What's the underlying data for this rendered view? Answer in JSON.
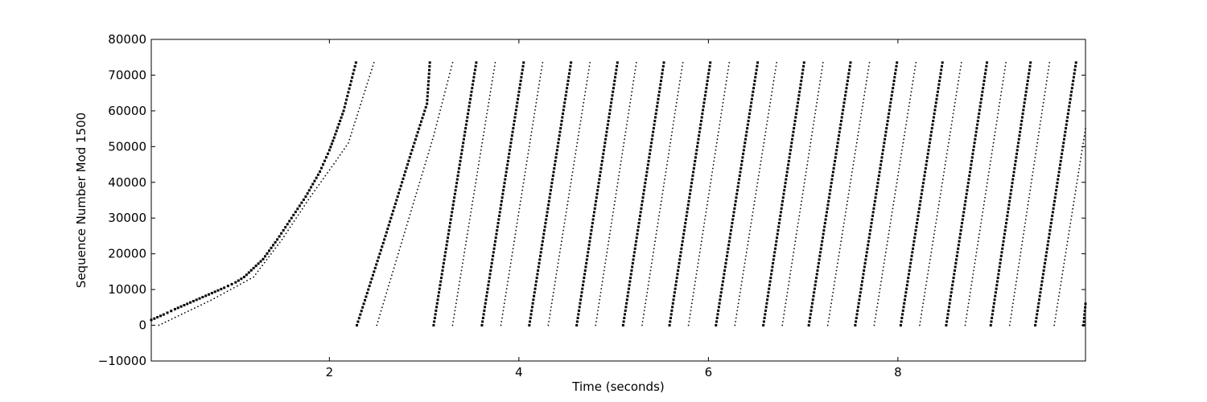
{
  "chart_data": {
    "type": "scatter",
    "title": "",
    "xlabel": "Time (seconds)",
    "ylabel": "Sequence Number Mod 1500",
    "xlim": [
      0.12,
      9.98
    ],
    "ylim": [
      -10000,
      80000
    ],
    "xticks": [
      2,
      4,
      6,
      8
    ],
    "xtick_labels": [
      "2",
      "4",
      "6",
      "8"
    ],
    "yticks": [
      -10000,
      0,
      10000,
      20000,
      30000,
      40000,
      50000,
      60000,
      70000,
      80000
    ],
    "ytick_labels": [
      "−10000",
      "0",
      "10000",
      "20000",
      "30000",
      "40000",
      "50000",
      "60000",
      "70000",
      "80000"
    ],
    "grid": false,
    "legend": "none",
    "marker_color": "#000000",
    "series": [
      {
        "marker": "square",
        "segments": [
          [
            [
              0.12,
              1500
            ],
            [
              0.25,
              3000
            ],
            [
              0.37,
              4500
            ],
            [
              0.5,
              6000
            ],
            [
              0.63,
              7500
            ],
            [
              0.76,
              9000
            ],
            [
              0.89,
              10500
            ],
            [
              1.01,
              12000
            ],
            [
              1.1,
              13500
            ],
            [
              1.2,
              16000
            ],
            [
              1.3,
              18500
            ],
            [
              1.45,
              24000
            ],
            [
              1.6,
              30000
            ],
            [
              1.75,
              36000
            ],
            [
              1.9,
              43000
            ],
            [
              2.0,
              49000
            ],
            [
              2.05,
              52500
            ],
            [
              2.15,
              60000
            ],
            [
              2.28,
              73500
            ]
          ],
          [
            [
              2.29,
              0
            ],
            [
              2.58,
              24000
            ],
            [
              2.86,
              48000
            ],
            [
              3.03,
              62000
            ],
            [
              3.06,
              73500
            ]
          ],
          [
            [
              3.1,
              0
            ],
            [
              3.55,
              73500
            ]
          ],
          [
            [
              3.61,
              0
            ],
            [
              4.05,
              73500
            ]
          ],
          [
            [
              4.11,
              0
            ],
            [
              4.55,
              73500
            ]
          ],
          [
            [
              4.61,
              0
            ],
            [
              5.04,
              73500
            ]
          ],
          [
            [
              5.1,
              0
            ],
            [
              5.53,
              73500
            ]
          ],
          [
            [
              5.59,
              0
            ],
            [
              6.02,
              73500
            ]
          ],
          [
            [
              6.08,
              0
            ],
            [
              6.52,
              73500
            ]
          ],
          [
            [
              6.58,
              0
            ],
            [
              7.01,
              73500
            ]
          ],
          [
            [
              7.06,
              0
            ],
            [
              7.5,
              73500
            ]
          ],
          [
            [
              7.55,
              0
            ],
            [
              7.99,
              73500
            ]
          ],
          [
            [
              8.03,
              0
            ],
            [
              8.47,
              73500
            ]
          ],
          [
            [
              8.51,
              0
            ],
            [
              8.94,
              73500
            ]
          ],
          [
            [
              8.98,
              0
            ],
            [
              9.4,
              73500
            ]
          ],
          [
            [
              9.45,
              0
            ],
            [
              9.88,
              73500
            ]
          ],
          [
            [
              9.96,
              0
            ],
            [
              9.98,
              6000
            ]
          ]
        ]
      },
      {
        "marker": "dot",
        "segments": [
          [
            [
              0.2,
              0
            ],
            [
              0.75,
              7000
            ],
            [
              1.2,
              13500
            ],
            [
              1.5,
              24000
            ],
            [
              1.8,
              36000
            ],
            [
              2.07,
              46000
            ],
            [
              2.2,
              51000
            ],
            [
              2.47,
              73500
            ]
          ],
          [
            [
              2.5,
              0
            ],
            [
              3.1,
              53000
            ],
            [
              3.3,
              73500
            ]
          ],
          [
            [
              3.3,
              0
            ],
            [
              3.75,
              73500
            ]
          ],
          [
            [
              3.81,
              0
            ],
            [
              4.25,
              73500
            ]
          ],
          [
            [
              4.31,
              0
            ],
            [
              4.75,
              73500
            ]
          ],
          [
            [
              4.81,
              0
            ],
            [
              5.24,
              73500
            ]
          ],
          [
            [
              5.3,
              0
            ],
            [
              5.73,
              73500
            ]
          ],
          [
            [
              5.79,
              0
            ],
            [
              6.22,
              73500
            ]
          ],
          [
            [
              6.28,
              0
            ],
            [
              6.72,
              73500
            ]
          ],
          [
            [
              6.78,
              0
            ],
            [
              7.21,
              73500
            ]
          ],
          [
            [
              7.26,
              0
            ],
            [
              7.7,
              73500
            ]
          ],
          [
            [
              7.75,
              0
            ],
            [
              8.19,
              73500
            ]
          ],
          [
            [
              8.23,
              0
            ],
            [
              8.67,
              73500
            ]
          ],
          [
            [
              8.71,
              0
            ],
            [
              9.14,
              73500
            ]
          ],
          [
            [
              9.18,
              0
            ],
            [
              9.6,
              73500
            ]
          ],
          [
            [
              9.65,
              0
            ],
            [
              9.98,
              55000
            ]
          ]
        ]
      }
    ]
  }
}
